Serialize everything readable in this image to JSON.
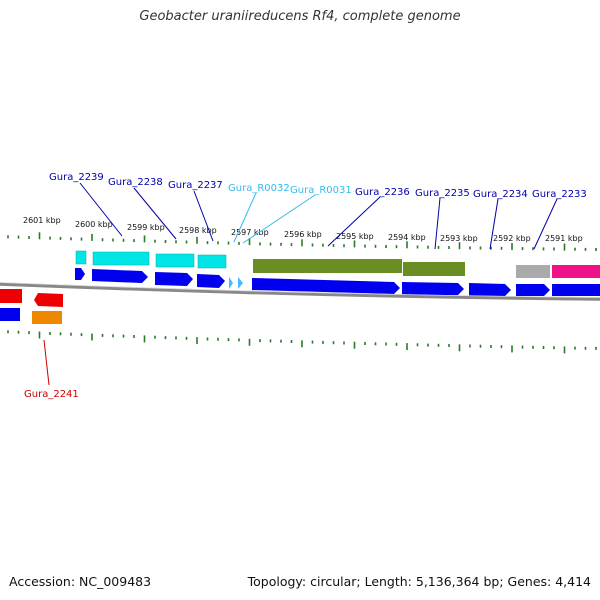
{
  "title": "Geobacter uraniireducens Rf4, complete genome",
  "accession": "Accession: NC_009483",
  "summary": "Topology: circular; Length: 5,136,364 bp; Genes: 4,414",
  "kbp_labels": [
    "2601 kbp",
    "2600 kbp",
    "2599 kbp",
    "2598 kbp",
    "2597 kbp",
    "2596 kbp",
    "2595 kbp",
    "2594 kbp",
    "2593 kbp",
    "2592 kbp",
    "2591 kbp"
  ],
  "gene_labels": [
    {
      "text": "Gura_2239",
      "color": "#0000aa"
    },
    {
      "text": "Gura_2238",
      "color": "#0000aa"
    },
    {
      "text": "Gura_2237",
      "color": "#0000aa"
    },
    {
      "text": "Gura_R0032",
      "color": "#33bbee"
    },
    {
      "text": "Gura_R0031",
      "color": "#33bbee"
    },
    {
      "text": "Gura_2236",
      "color": "#0000aa"
    },
    {
      "text": "Gura_2235",
      "color": "#0000aa"
    },
    {
      "text": "Gura_2234",
      "color": "#0000aa"
    },
    {
      "text": "Gura_2233",
      "color": "#0000aa"
    },
    {
      "text": "Gura_2241",
      "color": "#cc0000"
    }
  ],
  "colors": {
    "cds": "#0000ee",
    "cds_feature": "#00e6e6",
    "rna": "#44bbff",
    "gene_block": "#6b8e23",
    "gray_block": "#aaaaaa",
    "pink_block": "#ee1188",
    "red_block": "#ee0000",
    "orange_block": "#ee8800",
    "tick": "#2a7a2a",
    "backbone": "#888888"
  }
}
